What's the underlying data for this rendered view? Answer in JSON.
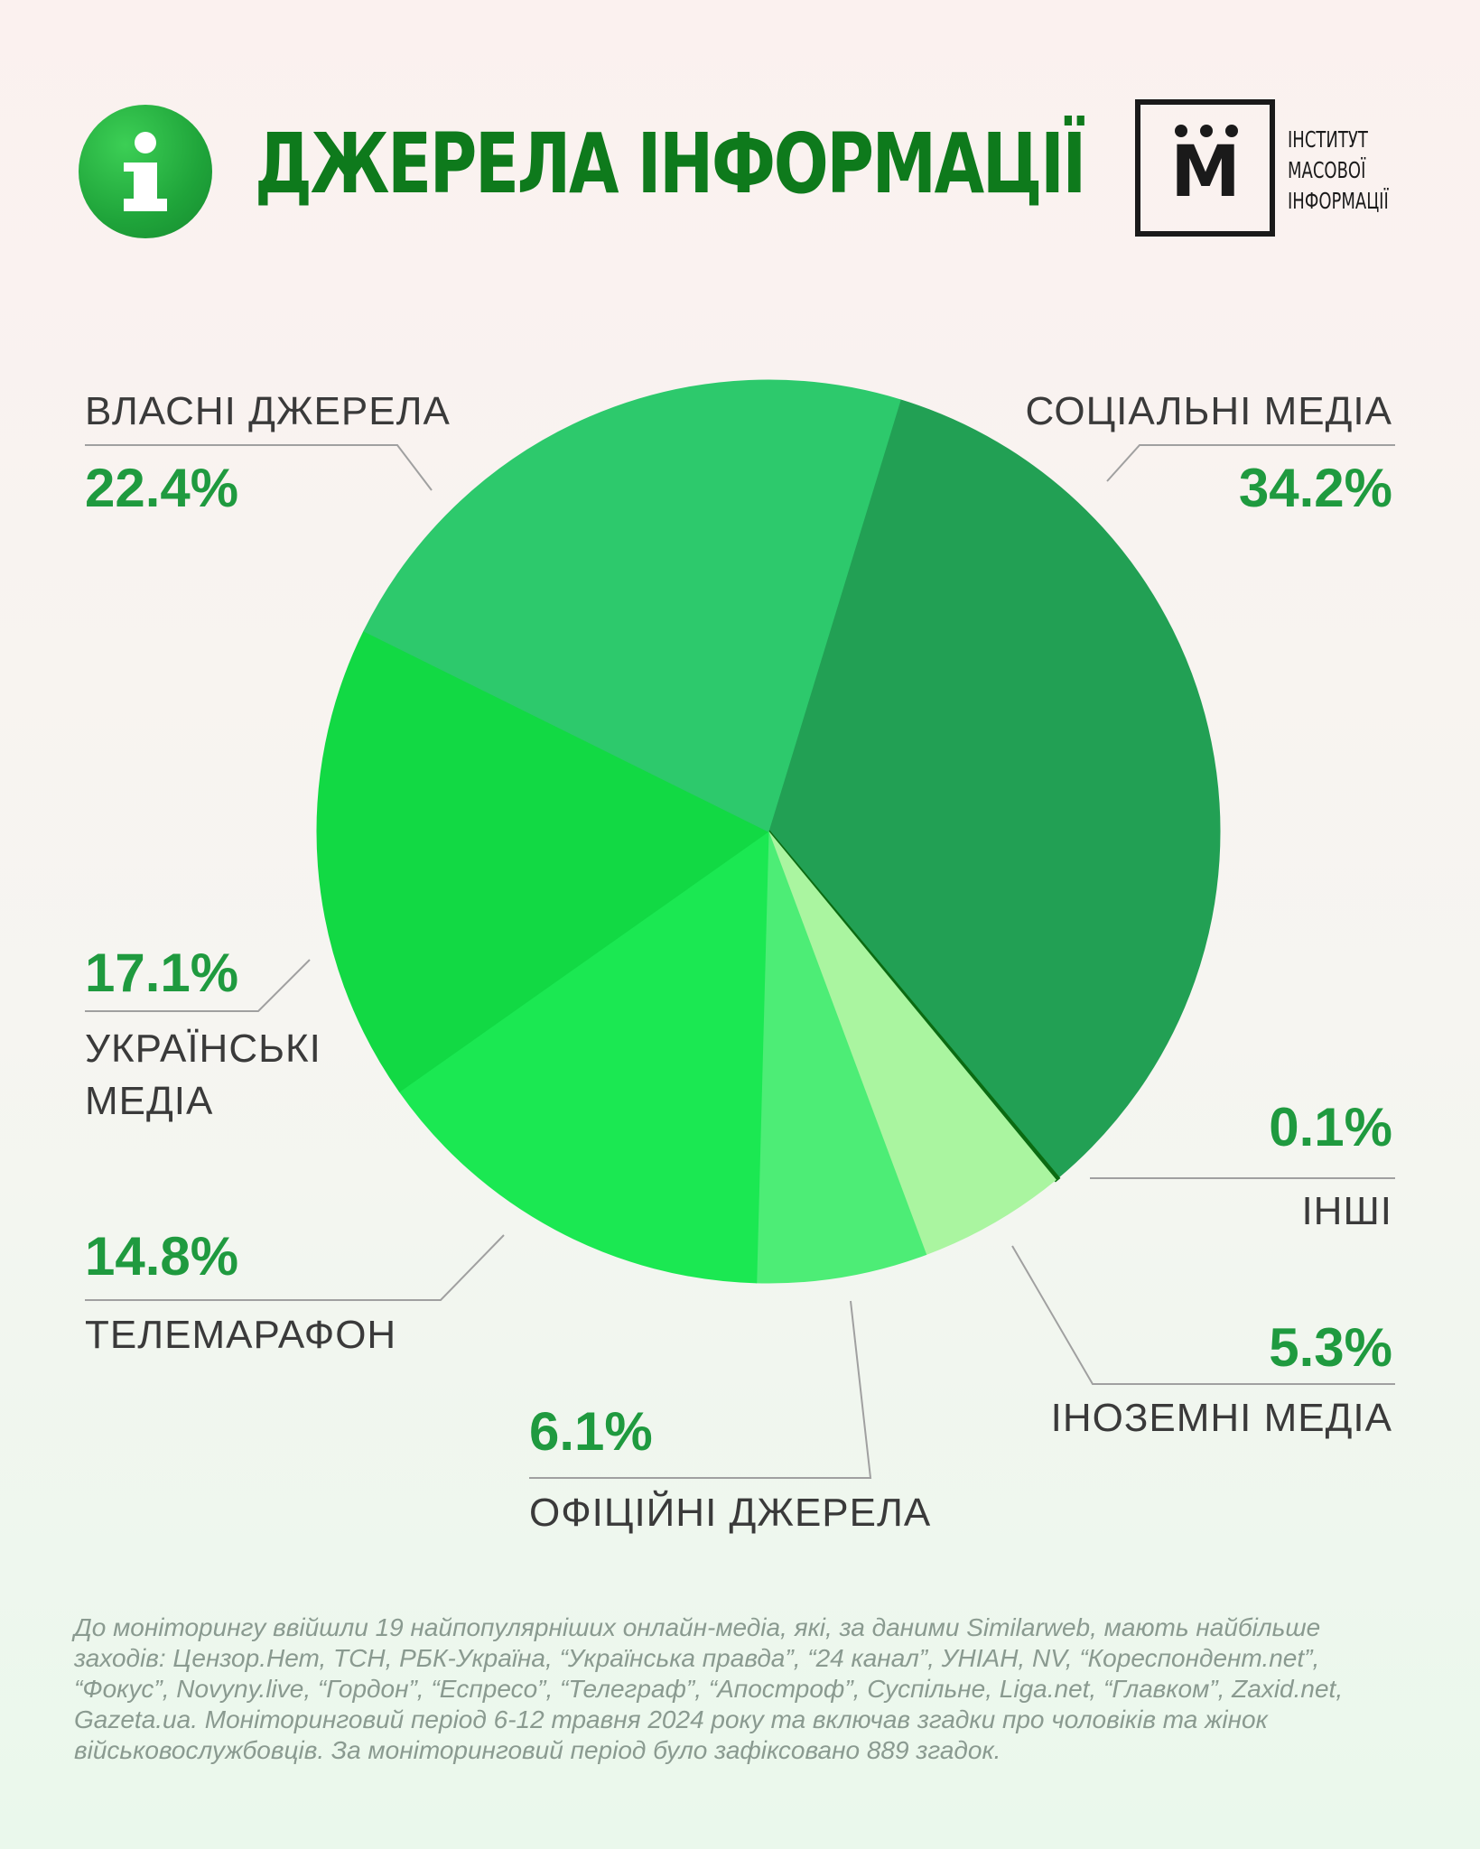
{
  "header": {
    "title": "ДЖЕРЕЛА ІНФОРМАЦІЇ",
    "icon": "info-icon",
    "logo_letter": "М",
    "logo_lines": [
      "ІНСТИТУТ",
      "МАСОВОЇ",
      "ІНФОРМАЦІЇ"
    ]
  },
  "chart_data": {
    "type": "pie",
    "slices": [
      {
        "label": "СОЦІАЛЬНІ МЕДІА",
        "value": 34.2,
        "pct_text": "34.2%",
        "color": "#22a054"
      },
      {
        "label": "ІНШІ",
        "value": 0.1,
        "pct_text": "0.1%",
        "color": "#0b6b12"
      },
      {
        "label": "ІНОЗЕМНІ МЕДІА",
        "value": 5.3,
        "pct_text": "5.3%",
        "color": "#aaf5a0"
      },
      {
        "label": "ОФІЦІЙНІ ДЖЕРЕЛА",
        "value": 6.1,
        "pct_text": "6.1%",
        "color": "#4ded76"
      },
      {
        "label": "ТЕЛЕМАРАФОН",
        "value": 14.8,
        "pct_text": "14.8%",
        "color": "#1be852"
      },
      {
        "label": "УКРАЇНСЬКІ МЕДІА",
        "value": 17.1,
        "pct_text": "17.1%",
        "color": "#12d944"
      },
      {
        "label": "ВЛАСНІ ДЖЕРЕЛА",
        "value": 22.4,
        "pct_text": "22.4%",
        "color": "#2dc96c"
      }
    ]
  },
  "labels": {
    "social": {
      "name": "СОЦІАЛЬНІ МЕДІА",
      "pct": "34.2%"
    },
    "own": {
      "name": "ВЛАСНІ ДЖЕРЕЛА",
      "pct": "22.4%"
    },
    "ukr": {
      "name_line1": "УКРАЇНСЬКІ",
      "name_line2": "МЕДІА",
      "pct": "17.1%"
    },
    "tele": {
      "name": "ТЕЛЕМАРАФОН",
      "pct": "14.8%"
    },
    "official": {
      "name": "ОФІЦІЙНІ ДЖЕРЕЛА",
      "pct": "6.1%"
    },
    "foreign": {
      "name": "ІНОЗЕМНІ МЕДІА",
      "pct": "5.3%"
    },
    "other": {
      "name": "ІНШІ",
      "pct": "0.1%"
    }
  },
  "footnote": "До моніторингу ввійшли 19 найпопулярніших  онлайн-медіа, які, за даними Similarweb, мають найбільше заходів: Цензор.Нет, ТСН, РБК-Україна, “Українська правда”, “24 канал”, УНІАН, NV, “Кореспондент.net”, “Фокус”, Novyny.live, “Гордон”, “Еспресо”, “Телеграф”, “Апостроф”, Суспільне, Liga.net, “Главком”, Zaxid.net, Gazeta.ua. Моніторинговий період 6-12 травня 2024 року та включав згадки про чоловіків та жінок військовослужбовців. За моніторинговий період було зафіксовано 889 згадок."
}
